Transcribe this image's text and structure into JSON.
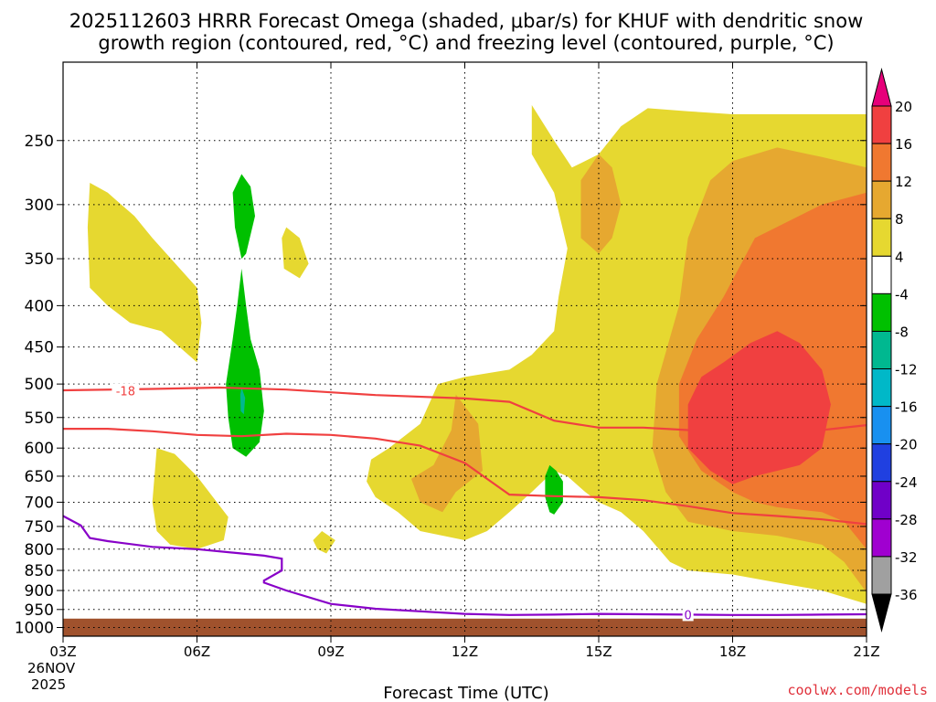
{
  "title_line1": "2025112603 HRRR Forecast Omega (shaded, μbar/s) for KHUF with dendritic snow",
  "title_line2": "growth region (contoured, red, °C) and freezing level (contoured, purple, °C)",
  "xlabel": "Forecast Time (UTC)",
  "credit": "coolwx.com/models",
  "date_label_line1": "26NOV",
  "date_label_line2": "2025",
  "chart_data": {
    "type": "heatmap",
    "x_ticks": [
      "03Z",
      "06Z",
      "09Z",
      "12Z",
      "15Z",
      "18Z",
      "21Z"
    ],
    "x_hours": [
      3,
      6,
      9,
      12,
      15,
      18,
      21
    ],
    "xlim": [
      3,
      21
    ],
    "y_ticks": [
      250,
      300,
      350,
      400,
      450,
      500,
      550,
      600,
      650,
      700,
      750,
      800,
      850,
      900,
      950,
      1000
    ],
    "y_tick_labels": [
      "250",
      "300",
      "350",
      "400",
      "450",
      "500",
      "550",
      "600",
      "650",
      "700",
      "750",
      "800",
      "850",
      "900",
      "950",
      "1000"
    ],
    "ylim": [
      200,
      1025
    ],
    "y_scale": "log",
    "y_inverted": true,
    "grid": true,
    "colorbar": {
      "labels": [
        "20",
        "16",
        "12",
        "8",
        "4",
        "-4",
        "-8",
        "-12",
        "-16",
        "-20",
        "-24",
        "-28",
        "-32",
        "-36"
      ],
      "colors": [
        "#e6007a",
        "#f04040",
        "#f07830",
        "#e6a830",
        "#e6d830",
        "#ffffff",
        "#00c000",
        "#00b890",
        "#00b8c8",
        "#1890f0",
        "#2040e0",
        "#7000c8",
        "#a000d0",
        "#a0a0a0",
        "#000000"
      ]
    },
    "contours": [
      {
        "name": "-18",
        "color": "#f04040",
        "points": [
          [
            3.0,
            509
          ],
          [
            5.0,
            507
          ],
          [
            6.5,
            505
          ],
          [
            8.0,
            508
          ],
          [
            10.0,
            516
          ],
          [
            12.0,
            521
          ],
          [
            13.0,
            526
          ],
          [
            14.0,
            555
          ],
          [
            15.0,
            566
          ],
          [
            16.0,
            566
          ],
          [
            17.0,
            570
          ],
          [
            18.0,
            575
          ],
          [
            19.0,
            576
          ],
          [
            20.0,
            570
          ],
          [
            21.0,
            562
          ]
        ]
      },
      {
        "name": "",
        "color": "#f04040",
        "points": [
          [
            3.0,
            568
          ],
          [
            4.0,
            568
          ],
          [
            5.0,
            572
          ],
          [
            6.0,
            578
          ],
          [
            7.0,
            580
          ],
          [
            8.0,
            576
          ],
          [
            9.0,
            578
          ],
          [
            10.0,
            584
          ],
          [
            11.0,
            596
          ],
          [
            12.0,
            626
          ],
          [
            12.5,
            655
          ],
          [
            13.0,
            685
          ],
          [
            14.0,
            688
          ],
          [
            15.0,
            690
          ],
          [
            16.0,
            696
          ],
          [
            17.0,
            708
          ],
          [
            18.0,
            722
          ],
          [
            19.0,
            728
          ],
          [
            20.0,
            735
          ],
          [
            21.0,
            745
          ]
        ]
      },
      {
        "name": "0",
        "color": "#8800c8",
        "points": [
          [
            3.0,
            728
          ],
          [
            3.4,
            748
          ],
          [
            3.6,
            775
          ],
          [
            4.0,
            782
          ],
          [
            5.0,
            795
          ],
          [
            6.0,
            800
          ],
          [
            7.0,
            810
          ],
          [
            7.5,
            815
          ],
          [
            7.9,
            822
          ],
          [
            7.9,
            850
          ],
          [
            7.5,
            875
          ],
          [
            7.5,
            880
          ],
          [
            8.0,
            900
          ],
          [
            9.0,
            935
          ],
          [
            10.0,
            948
          ],
          [
            11.0,
            955
          ],
          [
            12.0,
            962
          ],
          [
            13.0,
            965
          ],
          [
            14.0,
            964
          ],
          [
            15.0,
            962
          ],
          [
            16.0,
            963
          ],
          [
            17.0,
            964
          ],
          [
            18.0,
            965
          ],
          [
            19.0,
            965
          ],
          [
            20.0,
            964
          ],
          [
            21.0,
            963
          ]
        ]
      }
    ],
    "omega_regions": [
      {
        "level": "4 to 8",
        "color": "#e6d830",
        "polygons": [
          [
            [
              3.6,
              282
            ],
            [
              4.0,
              290
            ],
            [
              4.6,
              310
            ],
            [
              5.0,
              330
            ],
            [
              6.0,
              380
            ],
            [
              6.1,
              420
            ],
            [
              6.0,
              470
            ],
            [
              5.2,
              430
            ],
            [
              4.5,
              420
            ],
            [
              4.0,
              400
            ],
            [
              3.6,
              380
            ],
            [
              3.55,
              320
            ]
          ],
          [
            [
              8.0,
              320
            ],
            [
              8.3,
              330
            ],
            [
              8.5,
              355
            ],
            [
              8.3,
              370
            ],
            [
              7.95,
              360
            ],
            [
              7.9,
              330
            ]
          ],
          [
            [
              5.1,
              600
            ],
            [
              5.5,
              610
            ],
            [
              6.0,
              650
            ],
            [
              6.7,
              730
            ],
            [
              6.6,
              780
            ],
            [
              6.0,
              800
            ],
            [
              5.4,
              790
            ],
            [
              5.1,
              760
            ],
            [
              5.0,
              700
            ]
          ],
          [
            [
              8.8,
              760
            ],
            [
              9.1,
              780
            ],
            [
              8.9,
              810
            ],
            [
              8.7,
              800
            ],
            [
              8.6,
              780
            ]
          ],
          [
            [
              13.5,
              226
            ],
            [
              14.0,
              250
            ],
            [
              14.4,
              270
            ],
            [
              15.0,
              260
            ],
            [
              15.5,
              240
            ],
            [
              16.1,
              228
            ],
            [
              17.0,
              230
            ],
            [
              18.0,
              232
            ],
            [
              19.0,
              232
            ],
            [
              20.0,
              232
            ],
            [
              21.0,
              232
            ],
            [
              21.0,
              935
            ],
            [
              20.0,
              900
            ],
            [
              19.0,
              880
            ],
            [
              18.0,
              860
            ],
            [
              17.0,
              850
            ],
            [
              16.6,
              830
            ],
            [
              16.0,
              760
            ],
            [
              15.5,
              720
            ],
            [
              15.0,
              700
            ],
            [
              14.7,
              680
            ],
            [
              14.3,
              650
            ],
            [
              14.0,
              640
            ],
            [
              13.5,
              680
            ],
            [
              13.0,
              720
            ],
            [
              12.5,
              760
            ],
            [
              12.0,
              780
            ],
            [
              11.0,
              760
            ],
            [
              10.5,
              720
            ],
            [
              10.0,
              690
            ],
            [
              9.8,
              660
            ],
            [
              9.9,
              620
            ],
            [
              10.3,
              600
            ],
            [
              11.0,
              560
            ],
            [
              11.4,
              500
            ],
            [
              12.0,
              490
            ],
            [
              13.0,
              480
            ],
            [
              13.5,
              460
            ],
            [
              14.0,
              430
            ],
            [
              14.1,
              390
            ],
            [
              14.3,
              340
            ],
            [
              14.0,
              290
            ],
            [
              13.5,
              260
            ]
          ]
        ]
      },
      {
        "level": "8 to 12",
        "color": "#e6a830",
        "polygons": [
          [
            [
              11.8,
              515
            ],
            [
              12.3,
              560
            ],
            [
              12.4,
              640
            ],
            [
              11.8,
              680
            ],
            [
              11.5,
              720
            ],
            [
              11.0,
              700
            ],
            [
              10.8,
              655
            ],
            [
              11.3,
              630
            ],
            [
              11.7,
              570
            ]
          ],
          [
            [
              15.0,
              260
            ],
            [
              15.3,
              270
            ],
            [
              15.5,
              300
            ],
            [
              15.3,
              330
            ],
            [
              15.0,
              345
            ],
            [
              14.6,
              330
            ],
            [
              14.6,
              280
            ]
          ],
          [
            [
              17.0,
              330
            ],
            [
              17.5,
              280
            ],
            [
              18.0,
              265
            ],
            [
              19.0,
              255
            ],
            [
              20.0,
              262
            ],
            [
              21.0,
              270
            ],
            [
              21.0,
              905
            ],
            [
              20.5,
              830
            ],
            [
              20.0,
              790
            ],
            [
              19.0,
              770
            ],
            [
              18.0,
              760
            ],
            [
              17.0,
              740
            ],
            [
              16.5,
              680
            ],
            [
              16.2,
              600
            ],
            [
              16.3,
              500
            ],
            [
              16.8,
              400
            ]
          ]
        ]
      },
      {
        "level": "12 to 16",
        "color": "#f07830",
        "polygons": [
          [
            [
              17.8,
              390
            ],
            [
              18.5,
              330
            ],
            [
              20.0,
              300
            ],
            [
              21.0,
              290
            ],
            [
              21.0,
              800
            ],
            [
              20.5,
              740
            ],
            [
              20.0,
              720
            ],
            [
              19.0,
              710
            ],
            [
              18.5,
              700
            ],
            [
              18.0,
              680
            ],
            [
              17.3,
              640
            ],
            [
              16.8,
              580
            ],
            [
              16.8,
              500
            ],
            [
              17.2,
              440
            ]
          ]
        ]
      },
      {
        "level": "16 to 20",
        "color": "#f04040",
        "polygons": [
          [
            [
              17.8,
              470
            ],
            [
              18.4,
              445
            ],
            [
              19.0,
              430
            ],
            [
              19.5,
              445
            ],
            [
              20.0,
              480
            ],
            [
              20.2,
              530
            ],
            [
              20.0,
              600
            ],
            [
              19.5,
              630
            ],
            [
              19.0,
              640
            ],
            [
              18.5,
              650
            ],
            [
              18.0,
              665
            ],
            [
              17.5,
              640
            ],
            [
              17.0,
              600
            ],
            [
              17.0,
              530
            ],
            [
              17.3,
              490
            ]
          ]
        ]
      },
      {
        "level": "-4 to -8",
        "color": "#00c000",
        "polygons": [
          [
            [
              7.0,
              275
            ],
            [
              7.2,
              285
            ],
            [
              7.3,
              310
            ],
            [
              7.1,
              345
            ],
            [
              7.0,
              350
            ],
            [
              6.85,
              320
            ],
            [
              6.8,
              290
            ]
          ],
          [
            [
              7.0,
              360
            ],
            [
              7.1,
              400
            ],
            [
              7.2,
              440
            ],
            [
              7.4,
              480
            ],
            [
              7.5,
              540
            ],
            [
              7.4,
              590
            ],
            [
              7.1,
              615
            ],
            [
              6.8,
              600
            ],
            [
              6.7,
              550
            ],
            [
              6.65,
              500
            ],
            [
              6.8,
              440
            ],
            [
              6.9,
              400
            ]
          ],
          [
            [
              13.9,
              630
            ],
            [
              14.05,
              640
            ],
            [
              14.2,
              660
            ],
            [
              14.2,
              700
            ],
            [
              14.0,
              725
            ],
            [
              13.9,
              720
            ],
            [
              13.8,
              690
            ],
            [
              13.8,
              650
            ]
          ]
        ]
      },
      {
        "level": "-8 to -12",
        "color": "#00b890",
        "polygons": [
          [
            [
              7.0,
              505
            ],
            [
              7.08,
              520
            ],
            [
              7.05,
              545
            ],
            [
              6.98,
              540
            ],
            [
              6.97,
              515
            ]
          ]
        ]
      }
    ],
    "ground": {
      "color": "#a0522d",
      "from_pressure": 975
    }
  }
}
